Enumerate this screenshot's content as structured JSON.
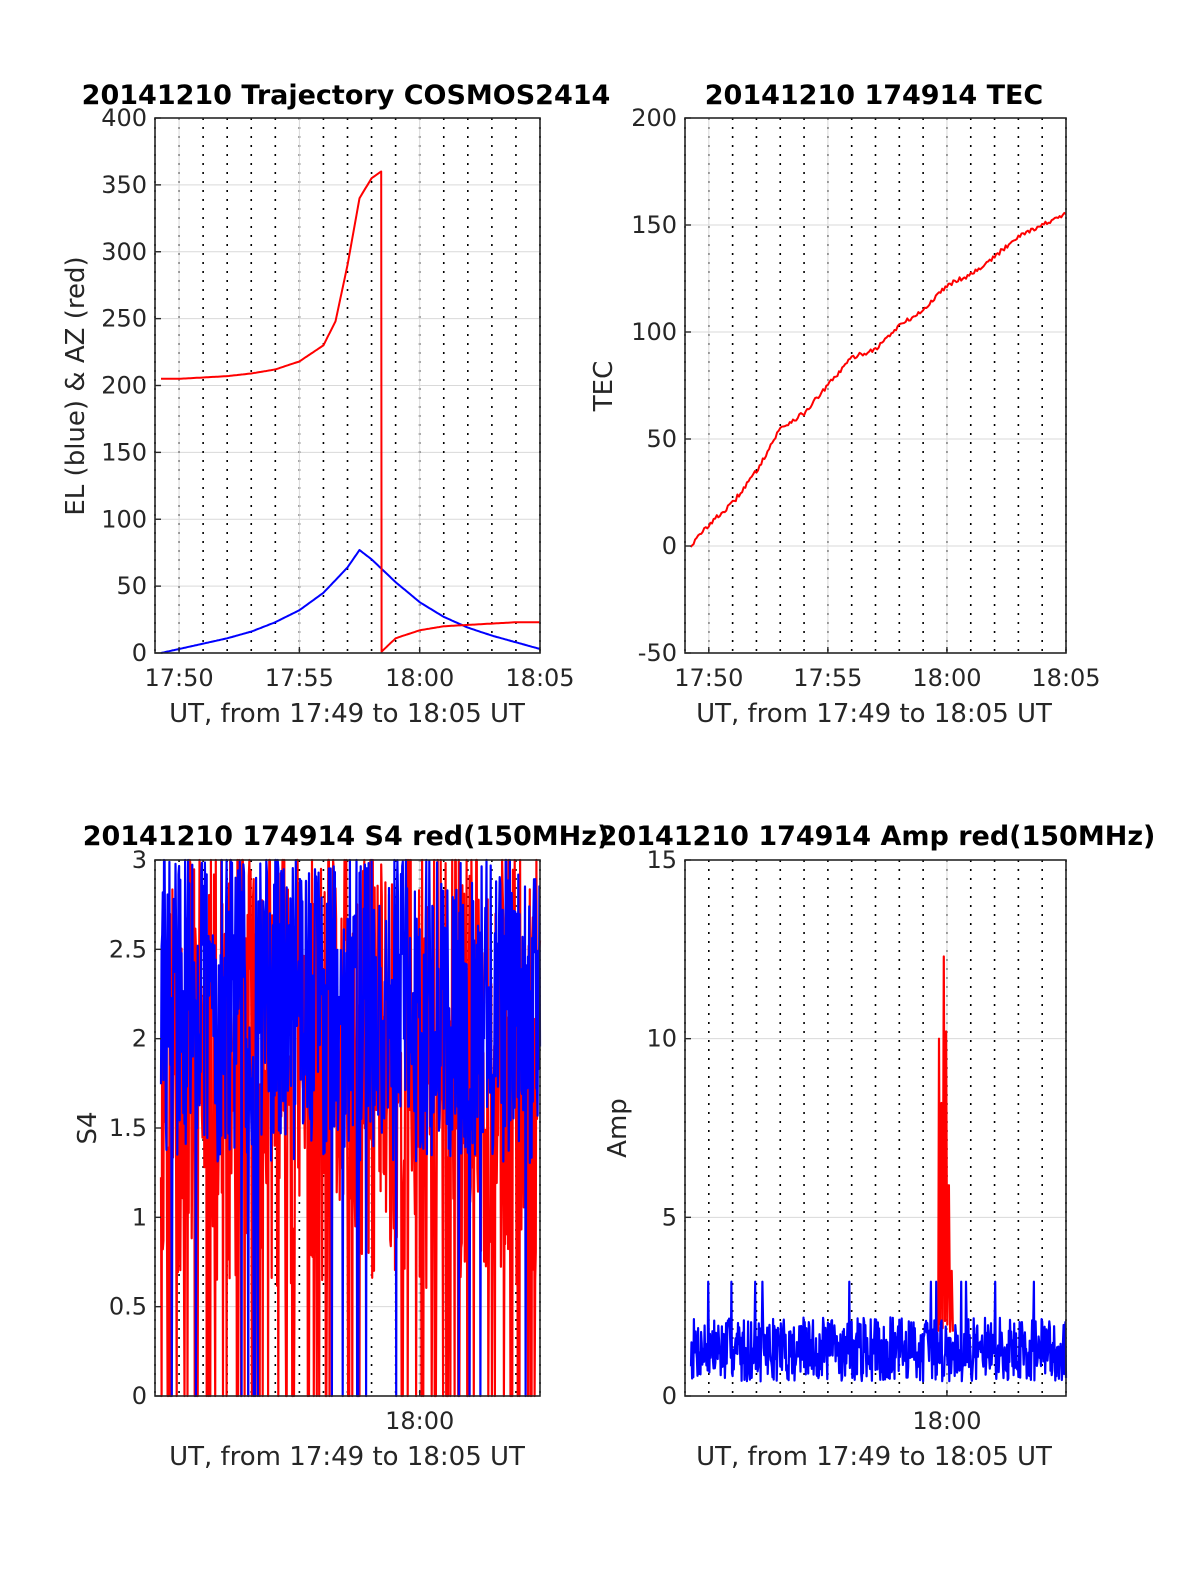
{
  "figure": {
    "background": "#ffffff"
  },
  "colors": {
    "red": "#ff0000",
    "blue": "#0000ff",
    "grid": "#d9d9d9",
    "axis": "#262626"
  },
  "chart_data": [
    {
      "id": "traj",
      "type": "line",
      "title": "20141210 Trajectory COSMOS2414",
      "xlabel": "UT, from 17:49 to 18:05 UT",
      "ylabel": "EL (blue) & AZ (red)",
      "xlim": [
        "17:49",
        "18:05"
      ],
      "ylim": [
        0,
        400
      ],
      "xticks": [
        "17:50",
        "17:55",
        "18:00",
        "18:05"
      ],
      "yticks": [
        0,
        50,
        100,
        150,
        200,
        250,
        300,
        350,
        400
      ],
      "grid": true,
      "series": [
        {
          "color": "#0000ff",
          "points": [
            [
              "17:49:15",
              0
            ],
            [
              "17:50:00",
              3
            ],
            [
              "17:51:00",
              7
            ],
            [
              "17:52:00",
              11
            ],
            [
              "17:53:00",
              16
            ],
            [
              "17:54:00",
              23
            ],
            [
              "17:55:00",
              32
            ],
            [
              "17:56:00",
              45
            ],
            [
              "17:57:00",
              64
            ],
            [
              "17:57:30",
              77
            ],
            [
              "17:58:00",
              70
            ],
            [
              "17:59:00",
              53
            ],
            [
              "18:00:00",
              38
            ],
            [
              "18:01:00",
              27
            ],
            [
              "18:02:00",
              19
            ],
            [
              "18:03:00",
              13
            ],
            [
              "18:04:00",
              8
            ],
            [
              "18:05:00",
              3
            ]
          ]
        },
        {
          "color": "#ff0000",
          "points": [
            [
              "17:49:15",
              205
            ],
            [
              "17:50:00",
              205
            ],
            [
              "17:51:00",
              206
            ],
            [
              "17:52:00",
              207
            ],
            [
              "17:53:00",
              209
            ],
            [
              "17:54:00",
              212
            ],
            [
              "17:55:00",
              218
            ],
            [
              "17:56:00",
              230
            ],
            [
              "17:56:30",
              248
            ],
            [
              "17:57:00",
              290
            ],
            [
              "17:57:30",
              340
            ],
            [
              "17:58:00",
              355
            ],
            [
              "17:58:24",
              360
            ],
            [
              "17:58:25",
              1
            ],
            [
              "17:59:00",
              11
            ],
            [
              "18:00:00",
              17
            ],
            [
              "18:01:00",
              20
            ],
            [
              "18:02:00",
              21
            ],
            [
              "18:03:00",
              22
            ],
            [
              "18:04:00",
              23
            ],
            [
              "18:05:00",
              23
            ]
          ]
        }
      ]
    },
    {
      "id": "tec",
      "type": "line",
      "title": "20141210 174914 TEC",
      "xlabel": "UT, from 17:49 to 18:05 UT",
      "ylabel": "TEC",
      "xlim": [
        "17:49",
        "18:05"
      ],
      "ylim": [
        -50,
        200
      ],
      "xticks": [
        "17:50",
        "17:55",
        "18:00",
        "18:05"
      ],
      "yticks": [
        -50,
        0,
        50,
        100,
        150,
        200
      ],
      "grid": true,
      "series": [
        {
          "color": "#ff0000",
          "points": [
            [
              "17:49:14",
              0
            ],
            [
              "17:50:00",
              10
            ],
            [
              "17:51:00",
              20
            ],
            [
              "17:52:00",
              35
            ],
            [
              "17:53:00",
              55
            ],
            [
              "17:54:00",
              62
            ],
            [
              "17:55:00",
              75
            ],
            [
              "17:56:00",
              88
            ],
            [
              "17:57:00",
              92
            ],
            [
              "17:58:00",
              103
            ],
            [
              "17:59:00",
              110
            ],
            [
              "18:00:00",
              122
            ],
            [
              "18:01:00",
              127
            ],
            [
              "18:02:00",
              135
            ],
            [
              "18:03:00",
              145
            ],
            [
              "18:04:00",
              150
            ],
            [
              "18:05:00",
              155
            ]
          ]
        }
      ]
    },
    {
      "id": "s4",
      "type": "line",
      "title": "20141210 174914 S4 red(150MHz)",
      "xlabel": "UT, from 17:49 to 18:05 UT",
      "ylabel": "S4",
      "xlim": [
        "17:49",
        "18:05"
      ],
      "ylim": [
        0,
        3
      ],
      "xticks": [
        "18:00"
      ],
      "yticks": [
        0,
        0.5,
        1,
        1.5,
        2,
        2.5,
        3
      ],
      "yticklabels": [
        "0",
        "0.5",
        "1",
        "1.5",
        "2",
        "2.5",
        "3"
      ],
      "grid": true,
      "series": [
        {
          "color": "#ff0000",
          "noise": {
            "seed": 11,
            "center": 1.9,
            "spread": 1.3,
            "dipProb": 0.12,
            "dipTo": 0
          }
        },
        {
          "color": "#0000ff",
          "noise": {
            "seed": 29,
            "center": 2.2,
            "spread": 0.9,
            "dipProb": 0.02,
            "dipTo": 0
          }
        }
      ]
    },
    {
      "id": "amp",
      "type": "line",
      "title": "20141210 174914 Amp red(150MHz)",
      "xlabel": "UT, from 17:49 to 18:05 UT",
      "ylabel": "Amp",
      "xlim": [
        "17:49",
        "18:05"
      ],
      "ylim": [
        0,
        15
      ],
      "xticks": [
        "18:00"
      ],
      "yticks": [
        0,
        5,
        10,
        15
      ],
      "grid": true,
      "series": [
        {
          "color": "#ff0000",
          "points": [
            [
              "17:59:38",
              1.8
            ],
            [
              "17:59:40",
              10.0
            ],
            [
              "17:59:43",
              2.0
            ],
            [
              "17:59:46",
              8.2
            ],
            [
              "17:59:49",
              1.9
            ],
            [
              "17:59:52",
              12.3
            ],
            [
              "17:59:55",
              2.1
            ],
            [
              "17:59:58",
              10.2
            ],
            [
              "18:00:01",
              2.0
            ],
            [
              "18:00:05",
              5.9
            ],
            [
              "18:00:08",
              1.8
            ],
            [
              "18:00:12",
              3.5
            ],
            [
              "18:00:15",
              1.8
            ]
          ]
        },
        {
          "color": "#0000ff",
          "noise": {
            "seed": 7,
            "center": 1.3,
            "spread": 0.9,
            "spikeProb": 0.015,
            "spikeTo": 3.2
          }
        }
      ]
    }
  ]
}
